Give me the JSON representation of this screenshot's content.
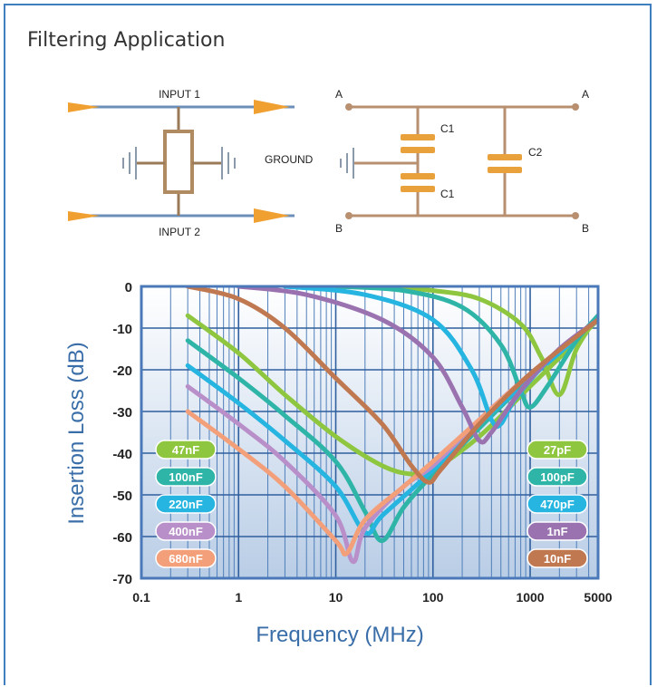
{
  "page_title": "Filtering Application",
  "schematic": {
    "input1_label": "INPUT 1",
    "input2_label": "INPUT 2",
    "ground_label": "GROUND",
    "node_a_left": "A",
    "node_a_right": "A",
    "node_b_left": "B",
    "node_b_right": "B",
    "c1_top_label": "C1",
    "c1_bottom_label": "C1",
    "c2_label": "C2",
    "wire_color": "#c8966a",
    "arrow_color": "#f0a030",
    "cap_color": "#e9a13b"
  },
  "chart_data": {
    "type": "line",
    "xlabel": "Frequency (MHz)",
    "ylabel": "Insertion Loss (dB)",
    "x_scale": "log",
    "xlim": [
      0.1,
      5000
    ],
    "ylim": [
      -70,
      0
    ],
    "x_ticks": [
      0.1,
      1,
      10,
      100,
      1000,
      5000
    ],
    "x_tick_labels": [
      "0.1",
      "1",
      "10",
      "100",
      "1000",
      "5000"
    ],
    "y_ticks": [
      0,
      -10,
      -20,
      -30,
      -40,
      -50,
      -60,
      -70
    ],
    "y_tick_labels": [
      "0",
      "-10",
      "-20",
      "-30",
      "-40",
      "-50",
      "-60",
      "-70"
    ],
    "grid": true,
    "series": [
      {
        "name": "47nF",
        "color": "#8ec63f",
        "legend_side": "left",
        "points": [
          [
            0.3,
            -7
          ],
          [
            1,
            -16
          ],
          [
            3,
            -26
          ],
          [
            10,
            -36
          ],
          [
            30,
            -43
          ],
          [
            60,
            -45
          ],
          [
            100,
            -44
          ],
          [
            300,
            -36
          ],
          [
            1000,
            -24
          ],
          [
            5000,
            -8
          ]
        ]
      },
      {
        "name": "100nF",
        "color": "#2fb5a8",
        "legend_side": "left",
        "points": [
          [
            0.3,
            -13
          ],
          [
            1,
            -22
          ],
          [
            3,
            -31
          ],
          [
            10,
            -42
          ],
          [
            20,
            -54
          ],
          [
            30,
            -61
          ],
          [
            50,
            -53
          ],
          [
            100,
            -45
          ],
          [
            300,
            -34
          ],
          [
            1000,
            -22
          ],
          [
            5000,
            -8
          ]
        ]
      },
      {
        "name": "220nF",
        "color": "#25b5e0",
        "legend_side": "left",
        "points": [
          [
            0.3,
            -19
          ],
          [
            1,
            -28
          ],
          [
            3,
            -37
          ],
          [
            10,
            -48
          ],
          [
            20,
            -59
          ],
          [
            30,
            -55
          ],
          [
            100,
            -44
          ],
          [
            300,
            -33
          ],
          [
            1000,
            -22
          ],
          [
            5000,
            -8
          ]
        ]
      },
      {
        "name": "400nF",
        "color": "#b98fc9",
        "legend_side": "left",
        "points": [
          [
            0.3,
            -24
          ],
          [
            1,
            -33
          ],
          [
            3,
            -42
          ],
          [
            10,
            -55
          ],
          [
            15,
            -66
          ],
          [
            20,
            -58
          ],
          [
            50,
            -48
          ],
          [
            100,
            -43
          ],
          [
            300,
            -32
          ],
          [
            1000,
            -21
          ],
          [
            5000,
            -8
          ]
        ]
      },
      {
        "name": "680nF",
        "color": "#f3a07a",
        "legend_side": "left",
        "points": [
          [
            0.3,
            -30
          ],
          [
            1,
            -39
          ],
          [
            3,
            -48
          ],
          [
            10,
            -61
          ],
          [
            13,
            -64
          ],
          [
            20,
            -56
          ],
          [
            50,
            -48
          ],
          [
            100,
            -42
          ],
          [
            300,
            -32
          ],
          [
            1000,
            -21
          ],
          [
            5000,
            -8
          ]
        ]
      },
      {
        "name": "27pF",
        "color": "#8ec63f",
        "legend_side": "right",
        "points": [
          [
            30,
            0
          ],
          [
            100,
            -1
          ],
          [
            300,
            -3
          ],
          [
            800,
            -9
          ],
          [
            1300,
            -17
          ],
          [
            2000,
            -26
          ],
          [
            3000,
            -15
          ],
          [
            5000,
            -7
          ]
        ]
      },
      {
        "name": "100pF",
        "color": "#2fb5a8",
        "legend_side": "right",
        "points": [
          [
            10,
            0
          ],
          [
            50,
            -1
          ],
          [
            200,
            -5
          ],
          [
            500,
            -14
          ],
          [
            800,
            -25
          ],
          [
            1000,
            -29
          ],
          [
            1500,
            -24
          ],
          [
            3000,
            -13
          ],
          [
            5000,
            -7
          ]
        ]
      },
      {
        "name": "470pF",
        "color": "#25b5e0",
        "legend_side": "right",
        "points": [
          [
            3,
            0
          ],
          [
            20,
            -2
          ],
          [
            100,
            -8
          ],
          [
            250,
            -20
          ],
          [
            400,
            -32
          ],
          [
            500,
            -33
          ],
          [
            700,
            -27
          ],
          [
            1500,
            -18
          ],
          [
            3000,
            -12
          ],
          [
            5000,
            -8
          ]
        ]
      },
      {
        "name": "1nF",
        "color": "#9b72b0",
        "legend_side": "right",
        "points": [
          [
            1,
            0
          ],
          [
            5,
            -2
          ],
          [
            30,
            -8
          ],
          [
            100,
            -17
          ],
          [
            200,
            -29
          ],
          [
            300,
            -37
          ],
          [
            400,
            -35
          ],
          [
            800,
            -25
          ],
          [
            2000,
            -15
          ],
          [
            5000,
            -8
          ]
        ]
      },
      {
        "name": "10nF",
        "color": "#c07850",
        "legend_side": "right",
        "points": [
          [
            0.3,
            0
          ],
          [
            1,
            -3
          ],
          [
            3,
            -10
          ],
          [
            10,
            -22
          ],
          [
            30,
            -33
          ],
          [
            60,
            -43
          ],
          [
            90,
            -47
          ],
          [
            120,
            -44
          ],
          [
            300,
            -33
          ],
          [
            1000,
            -21
          ],
          [
            5000,
            -8
          ]
        ]
      }
    ]
  }
}
